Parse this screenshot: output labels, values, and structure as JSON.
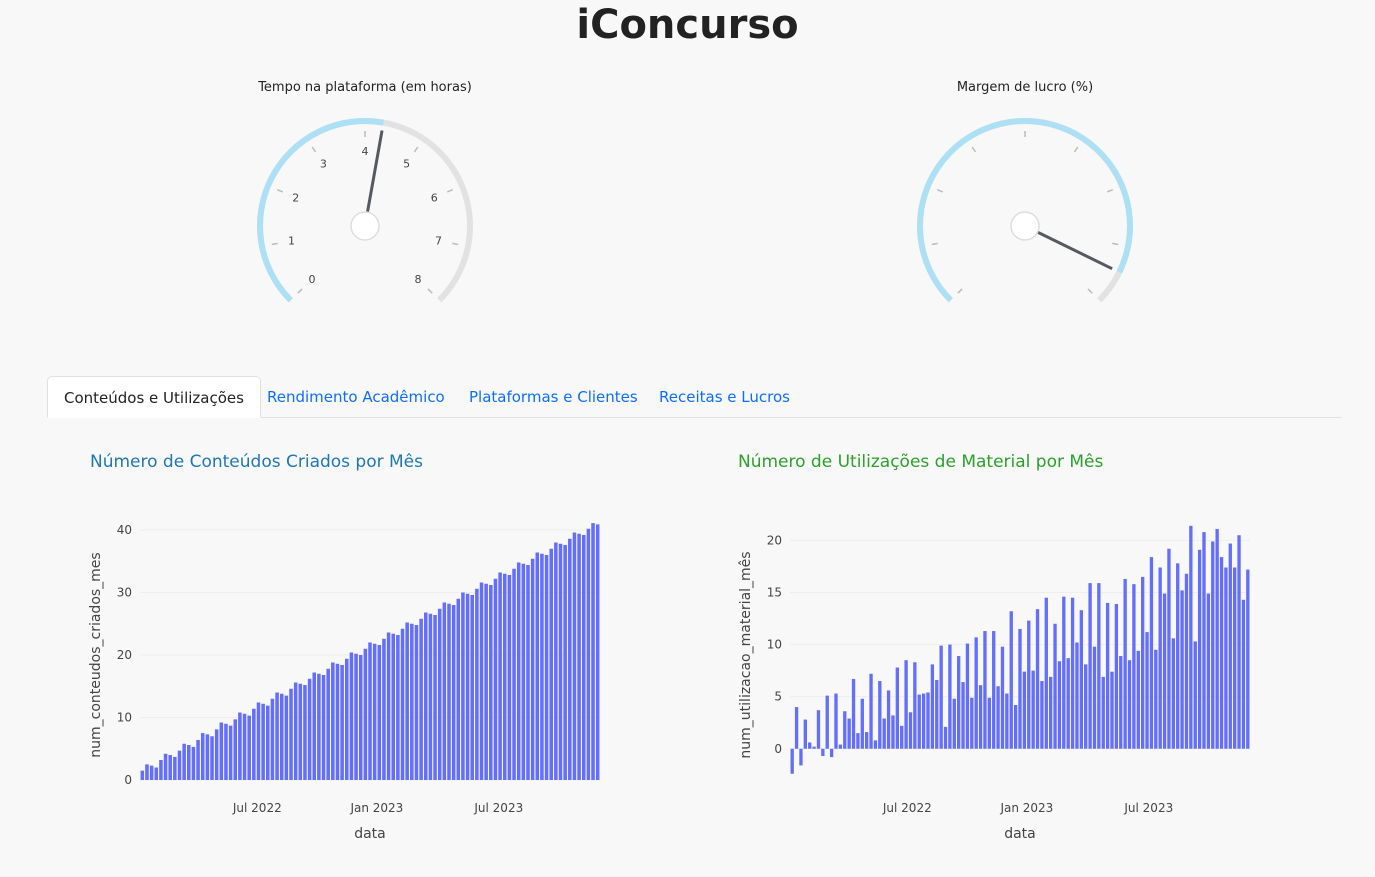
{
  "header": {
    "title": "iConcurso"
  },
  "gauges": [
    {
      "title": "Tempo na plataforma (em horas)",
      "min": 0,
      "max": 8,
      "value": 4.3,
      "tick_labels": [
        "0",
        "1",
        "2",
        "3",
        "4",
        "5",
        "6",
        "7",
        "8"
      ],
      "fill_color": "#aee0f5",
      "track_color": "#e2e2e2",
      "needle_color": "#555a62"
    },
    {
      "title": "Margem de lucro (%)",
      "min": 0,
      "max": 1,
      "value": 0.93,
      "tick_labels": [],
      "fill_color": "#aee0f5",
      "track_color": "#e2e2e2",
      "needle_color": "#555a62"
    }
  ],
  "tabs": [
    {
      "label": "Conteúdos e Utilizações",
      "active": true
    },
    {
      "label": "Rendimento Acadêmico",
      "active": false
    },
    {
      "label": "Plataformas e Clientes",
      "active": false
    },
    {
      "label": "Receitas e Lucros",
      "active": false
    }
  ],
  "chart_data": [
    {
      "type": "bar",
      "title": "Número de Conteúdos Criados por Mês",
      "title_color": "#1f77b4",
      "xlabel": "data",
      "ylabel": "num_conteudos_criados_mes",
      "bar_color": "#636efa",
      "x_tick_labels": [
        "Jul 2022",
        "Jan 2023",
        "Jul 2023"
      ],
      "y_tick_labels": [
        "0",
        "10",
        "20",
        "30",
        "40"
      ],
      "ylim": [
        0,
        40
      ],
      "values": [
        1.5,
        2.5,
        2.3,
        2,
        3.2,
        4.2,
        4,
        3.7,
        4.7,
        5.8,
        5.6,
        5.3,
        6.4,
        7.5,
        7.3,
        7,
        8.1,
        9.2,
        9,
        8.7,
        9.7,
        10.8,
        10.6,
        10.3,
        11.4,
        12.4,
        12.2,
        11.9,
        13,
        14,
        13.8,
        13.5,
        14.6,
        15.6,
        15.4,
        15.2,
        16.2,
        17.2,
        17,
        16.8,
        17.8,
        18.8,
        18.6,
        18.4,
        19.4,
        20.4,
        20.2,
        20,
        21,
        22,
        21.8,
        21.6,
        22.6,
        23.6,
        23.4,
        23.2,
        24.2,
        25.2,
        25,
        24.8,
        25.8,
        26.8,
        26.6,
        26.4,
        27.4,
        28.4,
        28.2,
        28,
        29,
        30,
        29.8,
        29.6,
        30.6,
        31.6,
        31.4,
        31.2,
        32.2,
        33.2,
        33,
        32.8,
        33.8,
        34.8,
        34.6,
        34.4,
        35.4,
        36.4,
        36.2,
        36,
        37,
        38,
        37.8,
        37.6,
        38.6,
        39.6,
        39.4,
        39.2,
        40.2,
        41.1,
        40.9
      ]
    },
    {
      "type": "bar",
      "title": "Número de Utilizações de Material por Mês",
      "title_color": "#2ca02c",
      "xlabel": "data",
      "ylabel": "num_utilizacao_material_mês",
      "bar_color": "#636efa",
      "x_tick_labels": [
        "Jul 2022",
        "Jan 2023",
        "Jul 2023"
      ],
      "y_tick_labels": [
        "0",
        "5",
        "10",
        "15",
        "20"
      ],
      "ylim": [
        -3,
        21
      ],
      "values": [
        -2.4,
        4,
        -1.6,
        2.8,
        0.6,
        0.2,
        3.7,
        -0.7,
        5.1,
        -0.8,
        5.3,
        0.4,
        3.6,
        2.9,
        6.7,
        1.5,
        4.8,
        1.6,
        7.2,
        0.8,
        6.5,
        2.9,
        5.6,
        3.2,
        7.8,
        2.2,
        8.5,
        3.5,
        8.3,
        5.2,
        5.3,
        5.4,
        8.1,
        6.6,
        9.9,
        2.1,
        10,
        4.8,
        8.9,
        6.4,
        10.1,
        4.9,
        10.7,
        6.1,
        11.3,
        4.9,
        11.3,
        6,
        9.8,
        5.3,
        13.2,
        4.2,
        11.5,
        7.4,
        12.3,
        7.5,
        13.4,
        6.5,
        14.5,
        6.9,
        12,
        8.4,
        14.6,
        8.7,
        14.5,
        10.2,
        13.3,
        8.1,
        15.9,
        9.8,
        15.9,
        6.9,
        14,
        7.4,
        13.9,
        8.9,
        16.3,
        8.5,
        15.8,
        9.4,
        16.5,
        11.2,
        18.4,
        9.5,
        17.4,
        14.9,
        19.2,
        10.6,
        17.8,
        15.2,
        16.8,
        21.4,
        10.3,
        19.1,
        20.8,
        14.9,
        19.9,
        21.1,
        18.4,
        17.4,
        19.7,
        17.4,
        20.5,
        14.3,
        17.2
      ]
    }
  ]
}
